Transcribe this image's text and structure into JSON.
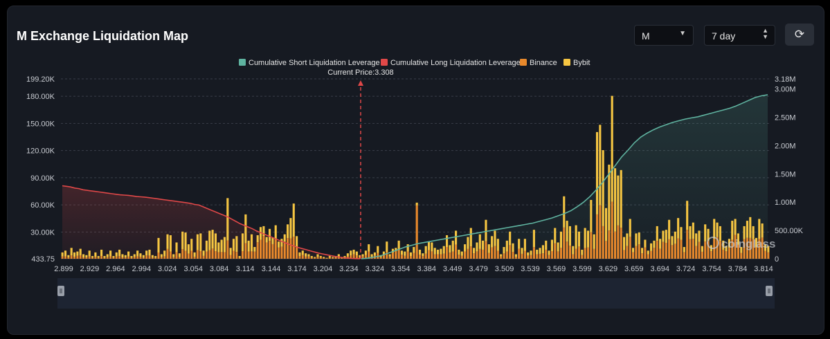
{
  "header": {
    "title": "M Exchange Liquidation Map",
    "symbol_select": "M",
    "range_select": "7 day",
    "refresh_icon": "refresh-icon"
  },
  "colors": {
    "short": "#5fb3a0",
    "long": "#e04848",
    "binance": "#e8892c",
    "bybit": "#f5c542",
    "background": "#161a22"
  },
  "watermark": "coinglass",
  "chart_data": {
    "type": "bar",
    "current_price_label": "Current Price:3.308",
    "current_price": 3.308,
    "legend": [
      {
        "name": "Cumulative Short Liquidation Leverage",
        "color": "#5fb3a0"
      },
      {
        "name": "Cumulative Long Liquidation Leverage",
        "color": "#e04848"
      },
      {
        "name": "Binance",
        "color": "#e8892c"
      },
      {
        "name": "Bybit",
        "color": "#f5c542"
      }
    ],
    "legend_placement": "top-center",
    "x_tick_labels": [
      "2.899",
      "2.929",
      "2.964",
      "2.994",
      "3.024",
      "3.054",
      "3.084",
      "3.114",
      "3.144",
      "3.174",
      "3.204",
      "3.234",
      "3.324",
      "3.354",
      "3.384",
      "3.449",
      "3.479",
      "3.509",
      "3.539",
      "3.569",
      "3.599",
      "3.629",
      "3.659",
      "3.694",
      "3.724",
      "3.754",
      "3.784",
      "3.814"
    ],
    "y_left_tick_labels": [
      "433.75",
      "30.00K",
      "60.00K",
      "90.00K",
      "120.00K",
      "150.00K",
      "180.00K",
      "199.20K"
    ],
    "y_left_range": [
      433.75,
      199200
    ],
    "y_right_tick_labels": [
      "0",
      "500.00K",
      "1.00M",
      "1.50M",
      "2.00M",
      "2.50M",
      "3.00M",
      "3.18M"
    ],
    "y_right_range": [
      0,
      3180000
    ],
    "grid": true,
    "bar_values": [
      7000,
      9000,
      4000,
      12000,
      7000,
      8000,
      11000,
      5000,
      4000,
      9000,
      3000,
      7000,
      3000,
      10000,
      3000,
      5000,
      9000,
      3000,
      7000,
      10000,
      5000,
      4000,
      8000,
      3000,
      5000,
      9000,
      6000,
      4000,
      9000,
      10000,
      4000,
      3000,
      23000,
      5000,
      9000,
      27000,
      26000,
      5000,
      18000,
      6000,
      30000,
      29000,
      16000,
      22000,
      7000,
      27000,
      28000,
      9000,
      20000,
      31000,
      32000,
      28000,
      18000,
      21000,
      24000,
      67000,
      12000,
      22000,
      25000,
      3000,
      28000,
      49000,
      20000,
      27000,
      13000,
      26000,
      35000,
      36000,
      24000,
      33000,
      23000,
      37000,
      19000,
      22000,
      27000,
      38000,
      45000,
      61000,
      25000,
      7000,
      9000,
      6000,
      5000,
      3000,
      2000,
      5000,
      3000,
      2000,
      1000,
      3000,
      2000,
      3000,
      5000,
      2000,
      3000,
      6000,
      9000,
      10000,
      8000,
      4000,
      5000,
      9000,
      16000,
      5000,
      7000,
      14000,
      4000,
      8000,
      19000,
      5000,
      11000,
      12000,
      20000,
      9000,
      8000,
      16000,
      7000,
      13000,
      62000,
      10000,
      6000,
      14000,
      19000,
      18000,
      12000,
      10000,
      11000,
      14000,
      26000,
      15000,
      20000,
      31000,
      10000,
      8000,
      16000,
      24000,
      34000,
      12000,
      18000,
      27000,
      20000,
      43000,
      16000,
      25000,
      31000,
      22000,
      5000,
      13000,
      20000,
      30000,
      17000,
      5000,
      22000,
      12000,
      22000,
      7000,
      9000,
      32000,
      10000,
      12000,
      15000,
      20000,
      9000,
      21000,
      34000,
      18000,
      30000,
      69000,
      42000,
      36000,
      14000,
      37000,
      30000,
      10000,
      34000,
      31000,
      65000,
      27000,
      140000,
      148000,
      120000,
      56000,
      104000,
      180000,
      100000,
      92000,
      98000,
      24000,
      28000,
      44000,
      12000,
      28000,
      29000,
      12000,
      21000,
      9000,
      17000,
      20000,
      36000,
      22000,
      31000,
      32000,
      43000,
      25000,
      30000,
      45000,
      35000,
      13000,
      64000,
      36000,
      40000,
      28000,
      31000,
      14000,
      38000,
      33000,
      15000,
      44000,
      40000,
      36000,
      20000,
      14000,
      22000,
      42000,
      44000,
      28000,
      13000,
      36000,
      42000,
      46000,
      36000,
      23000,
      44000,
      39000,
      16000,
      14000
    ],
    "binance_share": [
      0.35,
      0.3,
      0.35,
      0.3,
      0.3,
      0.4,
      0.35,
      0.3,
      0.35,
      0.3,
      0.35,
      0.3,
      0.35,
      0.3,
      0.3,
      0.35,
      0.3,
      0.4,
      0.35,
      0.3,
      0.3,
      0.35,
      0.3,
      0.35,
      0.4,
      0.3,
      0.35,
      0.3,
      0.4,
      0.35,
      0.3,
      0.35,
      0.3,
      0.35,
      0.3,
      0.4,
      0.3,
      0.35,
      0.4,
      0.3,
      0.35,
      0.3,
      0.35,
      0.4,
      0.3,
      0.35,
      0.3,
      0.35,
      0.4,
      0.3,
      0.35,
      0.3,
      0.4,
      0.35,
      0.3,
      0.3,
      0.35,
      0.4,
      0.3,
      0.35,
      0.3,
      0.35,
      0.4,
      0.3,
      0.6,
      0.7,
      0.6,
      0.7,
      0.75,
      0.6,
      0.7,
      0.6,
      0.65,
      0.6,
      0.7,
      0.6,
      0.5,
      0.4,
      0.5,
      0.4,
      0.45,
      0.4,
      0.5,
      0.4,
      0.45,
      0.4,
      0.5,
      0.4,
      0.45,
      0.4,
      0.5,
      0.4,
      0.5,
      0.4,
      0.5,
      0.45,
      0.4,
      0.5,
      0.45,
      0.4,
      0.5,
      0.45,
      0.5,
      0.4,
      0.5,
      0.45,
      0.4,
      0.55,
      0.4,
      0.5,
      0.6,
      0.7,
      0.5,
      0.5,
      0.4,
      0.5,
      0.4,
      0.5,
      0.95,
      0.45,
      0.5,
      0.4,
      0.5,
      0.45,
      0.4,
      0.5,
      0.45,
      0.4,
      0.5,
      0.45,
      0.4,
      0.5,
      0.45,
      0.4,
      0.5,
      0.45,
      0.4,
      0.5,
      0.45,
      0.4,
      0.5,
      0.45,
      0.4,
      0.5,
      0.45,
      0.4,
      0.5,
      0.45,
      0.4,
      0.5,
      0.45,
      0.4,
      0.5,
      0.45,
      0.4,
      0.5,
      0.45,
      0.4,
      0.5,
      0.45,
      0.4,
      0.5,
      0.45,
      0.4,
      0.5,
      0.45,
      0.4,
      0.5,
      0.45,
      0.4,
      0.35,
      0.3,
      0.45,
      0.4,
      0.35,
      0.4,
      0.45,
      0.4,
      0.35,
      0.4,
      0.3,
      0.35,
      0.3,
      0.35,
      0.3,
      0.4,
      0.35,
      0.4,
      0.5,
      0.55,
      0.6,
      0.5,
      0.55,
      0.5,
      0.6,
      0.55,
      0.5,
      0.6,
      0.55,
      0.5,
      0.6,
      0.55,
      0.5,
      0.6,
      0.55,
      0.5,
      0.6,
      0.55,
      0.5,
      0.6,
      0.55,
      0.5,
      0.6,
      0.55,
      0.5,
      0.6,
      0.55,
      0.5,
      0.6,
      0.55,
      0.5,
      0.6,
      0.55,
      0.5,
      0.6,
      0.55,
      0.5,
      0.6,
      0.55,
      0.5,
      0.6,
      0.55,
      0.5,
      0.6,
      0.55,
      0.5,
      0.6,
      0.55,
      0.5
    ],
    "long_cumulative": [
      1290000,
      1280000,
      1270000,
      1250000,
      1240000,
      1220000,
      1210000,
      1200000,
      1190000,
      1180000,
      1170000,
      1160000,
      1150000,
      1140000,
      1130000,
      1125000,
      1120000,
      1110000,
      1100000,
      1095000,
      1090000,
      1080000,
      1070000,
      1060000,
      1050000,
      1040000,
      1030000,
      1020000,
      1010000,
      1000000,
      990000,
      980000,
      960000,
      950000,
      920000,
      890000,
      860000,
      830000,
      800000,
      770000,
      740000,
      700000,
      660000,
      620000,
      590000,
      560000,
      530000,
      490000,
      460000,
      430000,
      400000,
      370000,
      340000,
      310000,
      280000,
      250000,
      225000,
      200000,
      180000,
      160000,
      140000,
      120000,
      100000,
      85000,
      70000,
      55000,
      40000,
      30000,
      20000,
      12000,
      6000,
      2000,
      0
    ],
    "short_cumulative": [
      0,
      10000,
      30000,
      50000,
      90000,
      130000,
      170000,
      210000,
      240000,
      270000,
      290000,
      310000,
      330000,
      350000,
      370000,
      390000,
      410000,
      430000,
      450000,
      470000,
      490000,
      510000,
      530000,
      550000,
      570000,
      590000,
      610000,
      630000,
      660000,
      690000,
      720000,
      760000,
      800000,
      850000,
      920000,
      1000000,
      1100000,
      1220000,
      1350000,
      1500000,
      1650000,
      1800000,
      1920000,
      2050000,
      2150000,
      2220000,
      2280000,
      2330000,
      2370000,
      2410000,
      2440000,
      2470000,
      2490000,
      2510000,
      2540000,
      2570000,
      2600000,
      2630000,
      2660000,
      2700000,
      2750000,
      2800000,
      2850000,
      2880000,
      2900000
    ]
  }
}
